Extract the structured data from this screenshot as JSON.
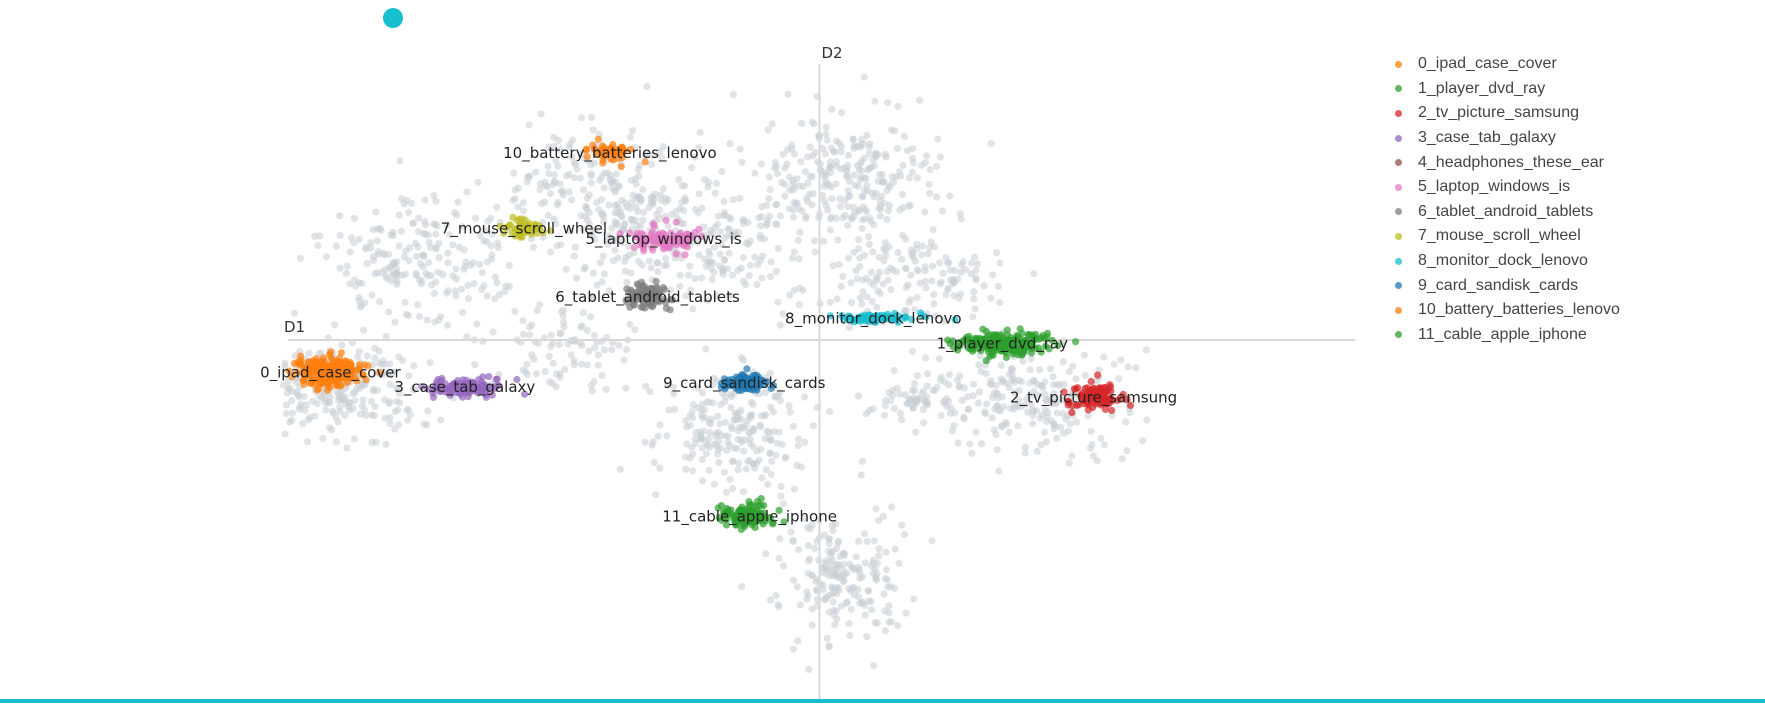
{
  "chart_data": {
    "type": "scatter",
    "title": "",
    "xlabel": "D1",
    "ylabel": "D2",
    "xlim": [
      -10,
      10
    ],
    "ylim": [
      -10,
      8
    ],
    "background_color": "#c8ced4",
    "legend_position": "top-right",
    "clusters": [
      {
        "name": "0_ipad_case_cover",
        "label": "0_ipad_case_cover",
        "color": "#ff7f0e",
        "center": [
          -9.1,
          -0.9
        ],
        "spread": [
          0.55,
          0.35
        ],
        "count": 260
      },
      {
        "name": "1_player_dvd_ray",
        "label": "1_player_dvd_ray",
        "color": "#2ca02c",
        "center": [
          3.4,
          -0.1
        ],
        "spread": [
          0.85,
          0.28
        ],
        "count": 200
      },
      {
        "name": "2_tv_picture_samsung",
        "label": "2_tv_picture_samsung",
        "color": "#d62728",
        "center": [
          5.1,
          -1.6
        ],
        "spread": [
          0.45,
          0.3
        ],
        "count": 110
      },
      {
        "name": "3_case_tab_galaxy",
        "label": "3_case_tab_galaxy",
        "color": "#9467bd",
        "center": [
          -6.6,
          -1.3
        ],
        "spread": [
          0.6,
          0.2
        ],
        "count": 110
      },
      {
        "name": "4_headphones_these_ear",
        "label": "4_headphones_these_ear",
        "color": "#8c564b",
        "center": [
          0.9,
          -10.2
        ],
        "spread": [
          0.2,
          0.1
        ],
        "count": 6
      },
      {
        "name": "5_laptop_windows_is",
        "label": "5_laptop_windows_is",
        "color": "#e377c2",
        "center": [
          -2.9,
          2.8
        ],
        "spread": [
          0.55,
          0.3
        ],
        "count": 95
      },
      {
        "name": "6_tablet_android_tablets",
        "label": "6_tablet_android_tablets",
        "color": "#7f7f7f",
        "center": [
          -3.2,
          1.2
        ],
        "spread": [
          0.3,
          0.35
        ],
        "count": 110
      },
      {
        "name": "7_mouse_scroll_wheel",
        "label": "7_mouse_scroll_wheel",
        "color": "#bcbd22",
        "center": [
          -5.5,
          3.1
        ],
        "spread": [
          0.4,
          0.2
        ],
        "count": 60
      },
      {
        "name": "8_monitor_dock_lenovo",
        "label": "8_monitor_dock_lenovo",
        "color": "#17becf",
        "center": [
          1.0,
          0.6
        ],
        "spread": [
          0.7,
          0.1
        ],
        "count": 80
      },
      {
        "name": "9_card_sandisk_cards",
        "label": "9_card_sandisk_cards",
        "color": "#1f77b4",
        "center": [
          -1.4,
          -1.2
        ],
        "spread": [
          0.35,
          0.25
        ],
        "count": 75
      },
      {
        "name": "10_battery_batteries_lenovo",
        "label": "10_battery_batteries_lenovo",
        "color": "#ff7f0e",
        "center": [
          -3.9,
          5.2
        ],
        "spread": [
          0.35,
          0.25
        ],
        "count": 50
      },
      {
        "name": "11_cable_apple_iphone",
        "label": "11_cable_apple_iphone",
        "color": "#2ca02c",
        "center": [
          -1.3,
          -4.9
        ],
        "spread": [
          0.45,
          0.3
        ],
        "count": 110
      }
    ]
  }
}
